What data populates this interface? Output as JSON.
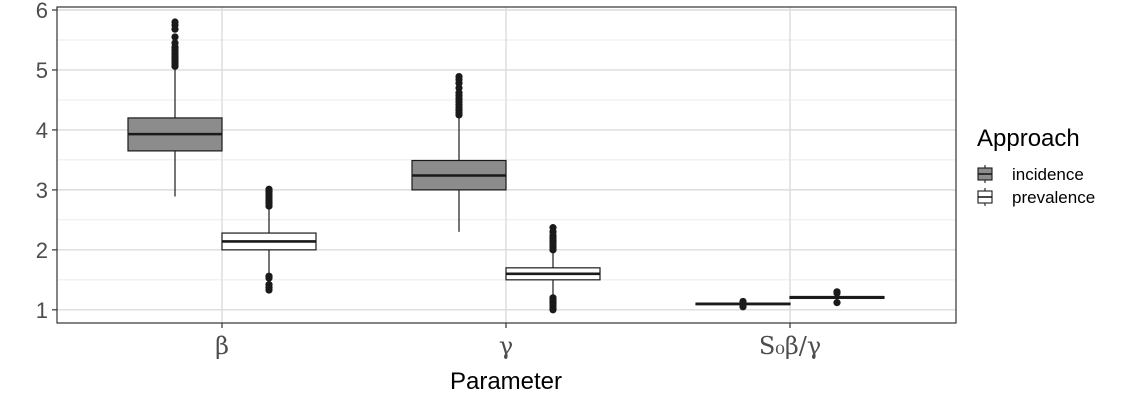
{
  "chart_data": {
    "type": "boxplot",
    "xlabel": "Parameter",
    "ylabel": "",
    "ylim": [
      0.78,
      6.05
    ],
    "yticks": [
      1,
      2,
      3,
      4,
      5,
      6
    ],
    "grid": true,
    "legend": {
      "title": "Approach",
      "placement": "right"
    },
    "categories": [
      "β",
      "γ",
      "S₀β/γ"
    ],
    "series": [
      {
        "name": "incidence",
        "fill": "#8c8c8c",
        "boxes": [
          {
            "category": "β",
            "lower_whisker": 2.89,
            "q1": 3.65,
            "median": 3.93,
            "q3": 4.2,
            "upper_whisker": 5.03,
            "outliers": [
              5.06,
              5.1,
              5.14,
              5.18,
              5.22,
              5.26,
              5.3,
              5.34,
              5.38,
              5.45,
              5.55,
              5.68,
              5.75,
              5.8
            ]
          },
          {
            "category": "γ",
            "lower_whisker": 2.3,
            "q1": 3.0,
            "median": 3.24,
            "q3": 3.49,
            "upper_whisker": 4.22,
            "outliers": [
              4.25,
              4.29,
              4.33,
              4.37,
              4.42,
              4.47,
              4.52,
              4.57,
              4.62,
              4.7,
              4.78,
              4.84,
              4.89
            ]
          },
          {
            "category": "S₀β/γ",
            "lower_whisker": 1.06,
            "q1": 1.09,
            "median": 1.1,
            "q3": 1.11,
            "upper_whisker": 1.13,
            "outliers": [
              1.05,
              1.14
            ]
          }
        ]
      },
      {
        "name": "prevalence",
        "fill": "#ffffff",
        "boxes": [
          {
            "category": "β",
            "lower_whisker": 1.59,
            "q1": 2.0,
            "median": 2.14,
            "q3": 2.28,
            "upper_whisker": 2.7,
            "outliers": [
              2.73,
              2.77,
              2.81,
              2.85,
              2.89,
              2.93,
              2.97,
              3.01,
              1.56,
              1.53,
              1.42,
              1.37,
              1.33
            ]
          },
          {
            "category": "γ",
            "lower_whisker": 1.22,
            "q1": 1.5,
            "median": 1.6,
            "q3": 1.7,
            "upper_whisker": 1.98,
            "outliers": [
              2.0,
              2.04,
              2.08,
              2.12,
              2.16,
              2.2,
              2.24,
              2.3,
              2.37,
              1.2,
              1.16,
              1.12,
              1.08,
              1.04,
              1.0
            ]
          },
          {
            "category": "S₀β/γ",
            "lower_whisker": 1.14,
            "q1": 1.19,
            "median": 1.21,
            "q3": 1.22,
            "upper_whisker": 1.26,
            "outliers": [
              1.12,
              1.28,
              1.3
            ]
          }
        ]
      }
    ]
  }
}
